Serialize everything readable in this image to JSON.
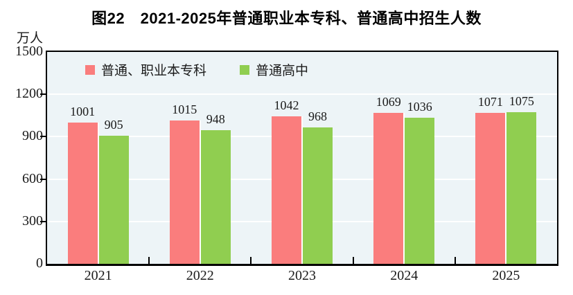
{
  "title": "图22　2021-2025年普通职业本专科、普通高中招生人数",
  "y_unit": "万人",
  "colors": {
    "series1": "#FA7D7D",
    "series2": "#90CE50",
    "plot_bg": "#EDF4F7",
    "grid": "#FFFFFF",
    "axis": "#000000",
    "text": "#1A1A1A"
  },
  "chart_data": {
    "type": "bar",
    "categories": [
      "2021",
      "2022",
      "2023",
      "2024",
      "2025"
    ],
    "series": [
      {
        "name": "普通、职业本专科",
        "color": "#FA7D7D",
        "values": [
          1001,
          1015,
          1042,
          1069,
          1071
        ]
      },
      {
        "name": "普通高中",
        "color": "#90CE50",
        "values": [
          905,
          948,
          968,
          1036,
          1075
        ]
      }
    ],
    "title": "图22　2021-2025年普通职业本专科、普通高中招生人数",
    "ylabel": "万人",
    "ylim": [
      0,
      1500
    ],
    "yticks": [
      0,
      300,
      600,
      900,
      1200,
      1500
    ],
    "grid": true,
    "legend_position": "top-inside-left"
  }
}
